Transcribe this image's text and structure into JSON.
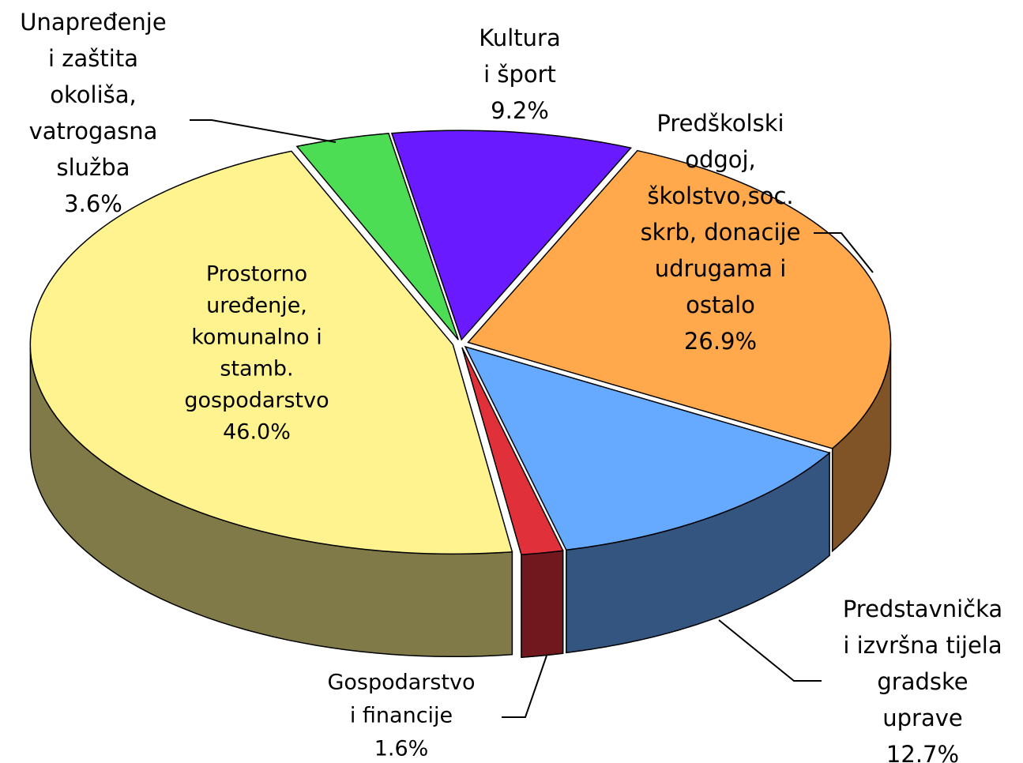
{
  "chart_data": {
    "type": "pie3d",
    "categories": [
      [
        "Kultura",
        "i šport"
      ],
      [
        "Predškolski",
        "odgoj,",
        "školstvo,soc.",
        "skrb, donacije",
        "udrugama i",
        "ostalo"
      ],
      [
        "Predstavnička",
        "i izvršna tijela",
        "gradske",
        "uprave"
      ],
      [
        "Gospodarstvo",
        "i financije"
      ],
      [
        "Prostorno",
        "uređenje,",
        "komunalno i",
        "stamb.",
        "gospodarstvo"
      ],
      [
        "Unapređenje",
        "i zaštita",
        "okoliša,",
        "vatrogasna",
        "služba"
      ]
    ],
    "values": [
      9.2,
      26.9,
      12.7,
      1.6,
      46.0,
      3.6
    ],
    "value_labels": [
      "9.2%",
      "26.9%",
      "12.7%",
      "1.6%",
      "46.0%",
      "3.6%"
    ],
    "colors": [
      "#6a1aff",
      "#ffa84c",
      "#66aaff",
      "#e0303a",
      "#fff38f",
      "#4ddd55"
    ]
  }
}
